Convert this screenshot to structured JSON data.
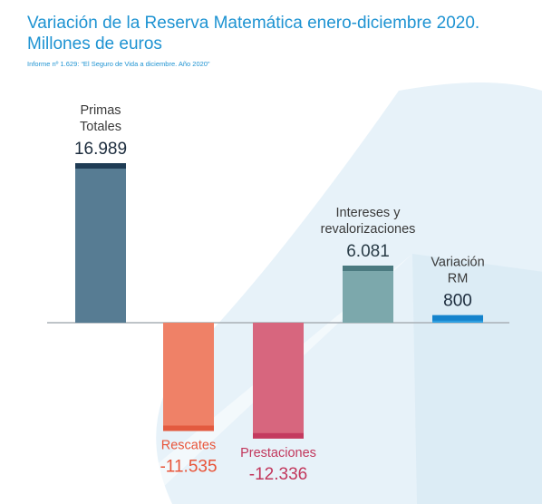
{
  "title_line1": "Variación de la Reserva Matemática enero-diciembre 2020.",
  "title_line2": "Millones de euros",
  "subtitle": "Informe nº 1.629: “El Seguro de Vida a diciembre. Año 2020”",
  "chart_data": {
    "type": "bar",
    "categories": [
      "Primas Totales",
      "Rescates",
      "Prestaciones",
      "Intereses y revalorizaciones",
      "Variación RM"
    ],
    "values": [
      16989,
      -11535,
      -12336,
      6081,
      800
    ],
    "bars": [
      {
        "label_lines": [
          "Primas",
          "Totales"
        ],
        "value_text": "16.989",
        "value": 16989,
        "label_color": "#3a3a3a",
        "value_color": "#1d2d3e",
        "fill": "#577c93",
        "cap": "#1f3c55"
      },
      {
        "label_lines": [
          "Rescates"
        ],
        "value_text": "-11.535",
        "value": -11535,
        "label_color": "#e8553a",
        "value_color": "#e8553a",
        "fill": "#ef8167",
        "cap": "#e35a3f"
      },
      {
        "label_lines": [
          "Prestaciones"
        ],
        "value_text": "-12.336",
        "value": -12336,
        "label_color": "#c2375c",
        "value_color": "#c2375c",
        "fill": "#d7667e",
        "cap": "#c43a5f"
      },
      {
        "label_lines": [
          "Intereses y",
          "revalorizaciones"
        ],
        "value_text": "6.081",
        "value": 6081,
        "label_color": "#3a3a3a",
        "value_color": "#2a3d48",
        "fill": "#7ca8ac",
        "cap": "#4b7a80"
      },
      {
        "label_lines": [
          "Variación",
          "RM"
        ],
        "value_text": "800",
        "value": 800,
        "label_color": "#3a3a3a",
        "value_color": "#1d2d3e",
        "fill": "#2f9fe0",
        "cap": "#1483cc"
      }
    ]
  }
}
